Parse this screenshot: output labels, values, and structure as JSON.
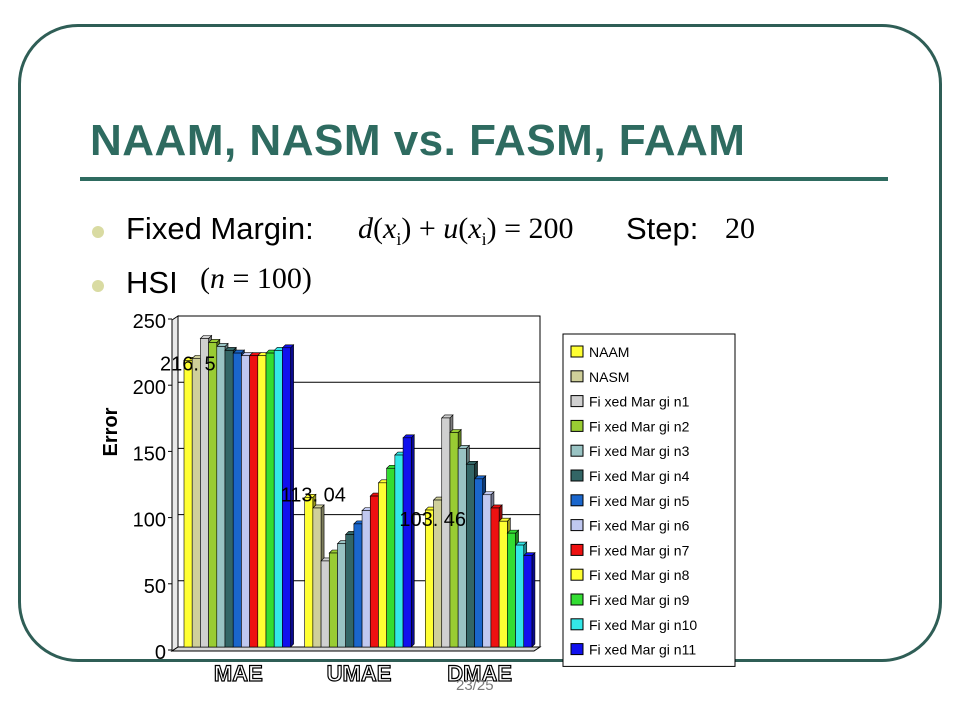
{
  "slide": {
    "title": "NAAM, NASM vs. FASM, FAAM",
    "bullet1_label": "Fixed Margin:",
    "bullet1_formula": "d(x_i)+u(x_i)=200",
    "step_label": "Step:",
    "step_value": "20",
    "bullet2_label": "HSI",
    "bullet2_formula": "(n=100)",
    "page_number": "23/25"
  },
  "chart_data": {
    "type": "bar",
    "ylabel": "Error",
    "xlabel": "",
    "ylim": [
      0,
      250
    ],
    "yticks": [
      "0",
      "50",
      "100",
      "150",
      "200",
      "250"
    ],
    "categories": [
      "MAE",
      "UMAE",
      "DMAE"
    ],
    "legend_position": "right",
    "grid": true,
    "annotations": [
      "216. 5",
      "113. 04",
      "103. 46"
    ],
    "series": [
      {
        "name": "NAAM",
        "color": "#ffff33",
        "values": [
          216.5,
          113.04,
          103.46
        ]
      },
      {
        "name": "NASM",
        "color": "#cfcf9a",
        "values": [
          218,
          105,
          111
        ]
      },
      {
        "name": "Fi xed Mar gi n1",
        "color": "#d0d0d0",
        "values": [
          233,
          65,
          173
        ]
      },
      {
        "name": "Fi xed Mar gi n2",
        "color": "#99cc33",
        "values": [
          230,
          71,
          162
        ]
      },
      {
        "name": "Fi xed Mar gi n3",
        "color": "#99c3c3",
        "values": [
          227,
          78,
          150
        ]
      },
      {
        "name": "Fi xed Mar gi n4",
        "color": "#336666",
        "values": [
          224,
          85,
          138
        ]
      },
      {
        "name": "Fi xed Mar gi n5",
        "color": "#1a66cc",
        "values": [
          222,
          93,
          127
        ]
      },
      {
        "name": "Fi xed Mar gi n6",
        "color": "#c0c8f0",
        "values": [
          220,
          103,
          115
        ]
      },
      {
        "name": "Fi xed Mar gi n7",
        "color": "#ee1111",
        "values": [
          220,
          114,
          105
        ]
      },
      {
        "name": "Fi xed Mar gi n8",
        "color": "#ffff33",
        "values": [
          220,
          124,
          95
        ]
      },
      {
        "name": "Fi xed Mar gi n9",
        "color": "#33dd33",
        "values": [
          222,
          135,
          86
        ]
      },
      {
        "name": "Fi xed Mar gi n10",
        "color": "#33e8e8",
        "values": [
          224,
          145,
          77
        ]
      },
      {
        "name": "Fi xed Mar gi n11",
        "color": "#1111ee",
        "values": [
          226,
          158,
          69
        ]
      }
    ]
  }
}
